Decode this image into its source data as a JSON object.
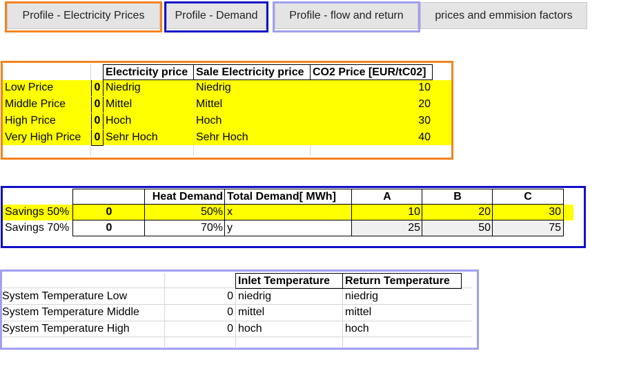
{
  "tabs": [
    {
      "label": "Profile - Electricity Prices",
      "outline": "#f5821f"
    },
    {
      "label": "Profile - Demand",
      "outline": "#1010c8"
    },
    {
      "label": "Profile - flow and return",
      "outline": "#a0a0f0"
    },
    {
      "label": "prices and emmision factors"
    }
  ],
  "prices": {
    "headers": [
      "Electricity price",
      "Sale Electricity price",
      "CO2 Price [EUR/tC02]"
    ],
    "rows": [
      {
        "name": "Low Price",
        "flag": "0",
        "elec": "Niedrig",
        "sale": "Niedrig",
        "co2": "10"
      },
      {
        "name": "Middle Price",
        "flag": "0",
        "elec": "Mittel",
        "sale": "Mittel",
        "co2": "20"
      },
      {
        "name": "High Price",
        "flag": "0",
        "elec": "Hoch",
        "sale": "Hoch",
        "co2": "30"
      },
      {
        "name": "Very High Price",
        "flag": "0",
        "elec": "Sehr Hoch",
        "sale": "Sehr Hoch",
        "co2": "40"
      }
    ]
  },
  "demand": {
    "headers": [
      "Heat Demand",
      "Total Demand[ MWh]",
      "A",
      "B",
      "C"
    ],
    "rows": [
      {
        "name": "Savings 50%",
        "flag": "0",
        "heat": "50%",
        "total": "x",
        "a": "10",
        "b": "20",
        "c": "30"
      },
      {
        "name": "Savings 70%",
        "flag": "0",
        "heat": "70%",
        "total": "y",
        "a": "25",
        "b": "50",
        "c": "75"
      }
    ]
  },
  "temperature": {
    "headers": [
      "Inlet Temperature",
      "Return Temperature"
    ],
    "rows": [
      {
        "name": "System Temperature Low",
        "flag": "0",
        "inlet": "niedrig",
        "ret": "niedrig"
      },
      {
        "name": "System Temperature Middle",
        "flag": "0",
        "inlet": "mittel",
        "ret": "mittel"
      },
      {
        "name": "System Temperature High",
        "flag": "0",
        "inlet": "hoch",
        "ret": "hoch"
      }
    ]
  },
  "colors": {
    "orange": "#f5821f",
    "blue": "#1010c8",
    "lavender": "#a0a0f0",
    "highlight": "#ffff00"
  }
}
